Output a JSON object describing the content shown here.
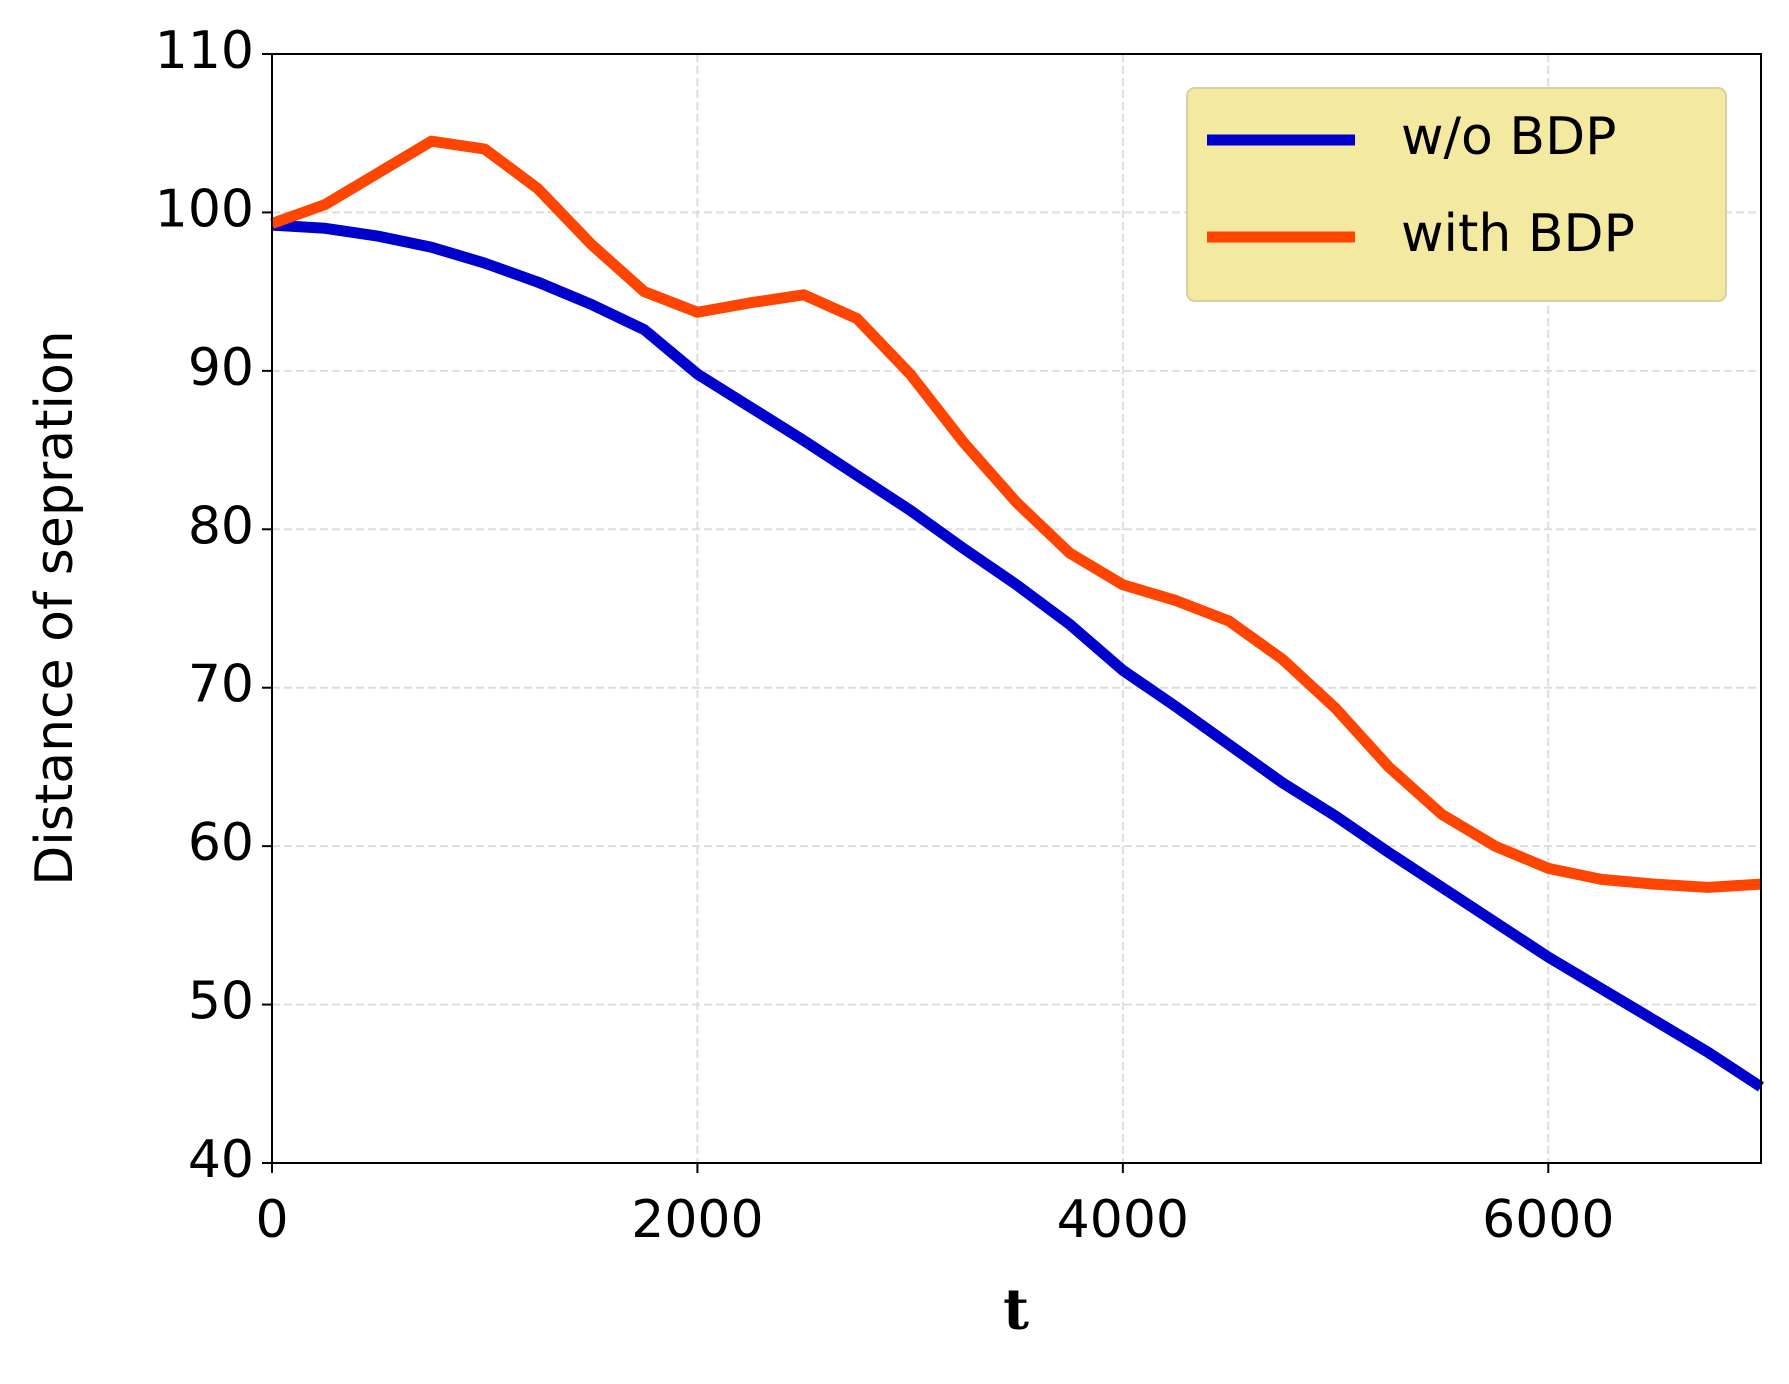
{
  "chart_data": {
    "type": "line",
    "xlabel": "t",
    "ylabel": "Distance of sepration",
    "x": [
      0,
      250,
      500,
      750,
      1000,
      1250,
      1500,
      1750,
      2000,
      2250,
      2500,
      2750,
      3000,
      3250,
      3500,
      3750,
      4000,
      4250,
      4500,
      4750,
      5000,
      5250,
      5500,
      5750,
      6000,
      6250,
      6500,
      6750,
      7000
    ],
    "series": [
      {
        "name": "w/o BDP",
        "color": "#0000cc",
        "values": [
          99.2,
          99.0,
          98.5,
          97.8,
          96.8,
          95.6,
          94.2,
          92.6,
          89.8,
          87.7,
          85.6,
          83.4,
          81.2,
          78.8,
          76.5,
          74.0,
          71.1,
          68.8,
          66.4,
          64.0,
          61.9,
          59.6,
          57.4,
          55.2,
          53.0,
          51.0,
          49.0,
          47.0,
          44.8
        ]
      },
      {
        "name": "with BDP",
        "color": "#ff4500",
        "values": [
          99.3,
          100.5,
          102.5,
          104.5,
          104.0,
          101.5,
          98.0,
          95.0,
          93.7,
          94.3,
          94.8,
          93.3,
          89.8,
          85.5,
          81.7,
          78.5,
          76.5,
          75.5,
          74.2,
          71.8,
          68.7,
          65.0,
          62.0,
          60.0,
          58.6,
          57.9,
          57.6,
          57.4,
          57.6
        ]
      }
    ],
    "xlim": [
      0,
      7000
    ],
    "xticks": [
      0,
      2000,
      4000,
      6000
    ],
    "ylim": [
      40,
      110
    ],
    "yticks": [
      40,
      50,
      60,
      70,
      80,
      90,
      100,
      110
    ],
    "grid": true,
    "legend": "upper right"
  }
}
